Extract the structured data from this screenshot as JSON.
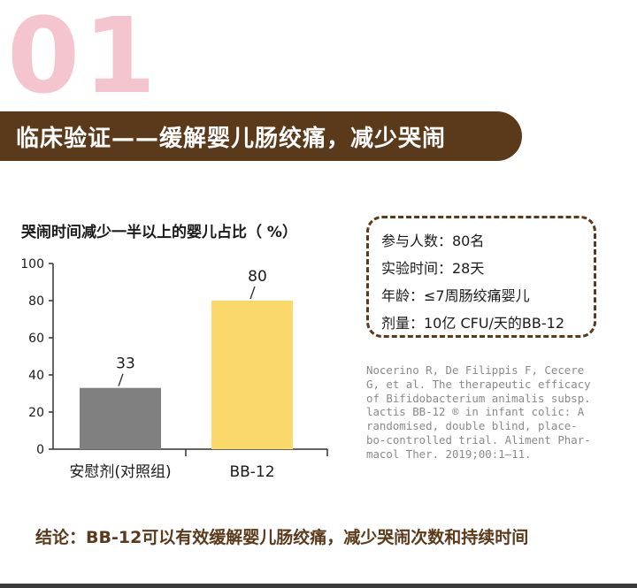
{
  "header": {
    "section_number": "01",
    "banner_title": "临床验证——缓解婴儿肠绞痛，减少哭闹"
  },
  "colors": {
    "banner_bg": "#5a3a1a",
    "number_pink": "#f4c4cf",
    "placebo_bar": "#808080",
    "bb12_bar": "#fad86a"
  },
  "chart_data": {
    "type": "bar",
    "title": "哭闹时间减少一半以上的婴儿占比（ %）",
    "categories": [
      "安慰剂(对照组)",
      "BB-12"
    ],
    "values": [
      33,
      80
    ],
    "value_labels": [
      "33",
      "80"
    ],
    "ylim": [
      0,
      100
    ],
    "yticks": [
      0,
      20,
      40,
      60,
      80,
      100
    ],
    "xlabel": "",
    "ylabel": "",
    "grid": false
  },
  "info_box": {
    "lines": [
      "参与人数：80名",
      "实验时间：28天",
      "年龄：≤7周肠绞痛婴儿",
      "剂量：10亿 CFU/天的BB-12"
    ]
  },
  "citation": {
    "lines": [
      "Nocerino R, De Filippis F, Cecere",
      "G, et al. The therapeutic efficacy",
      "of Bifidobacterium animalis subsp.",
      "lactis BB-12 ® in infant colic: A",
      "randomised, double blind, place-",
      "bo-controlled trial. Aliment Phar-",
      "macol Ther. 2019;00:1–11."
    ]
  },
  "conclusion": "结论：BB-12可以有效缓解婴儿肠绞痛，减少哭闹次数和持续时间"
}
